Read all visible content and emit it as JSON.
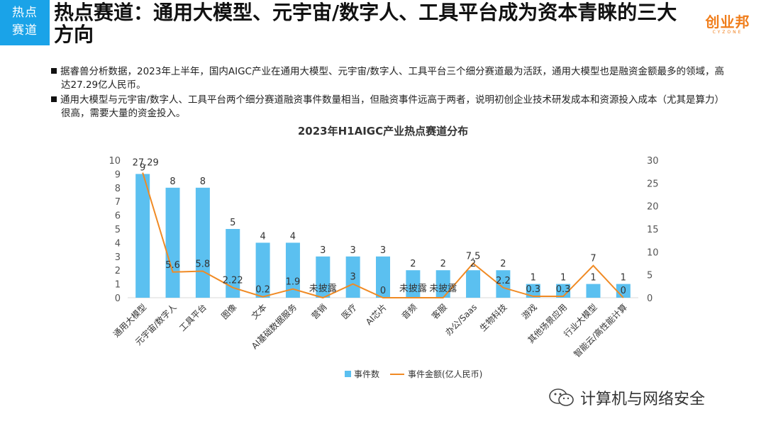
{
  "tag": {
    "line1": "热点",
    "line2": "赛道"
  },
  "title": "热点赛道：通用大模型、元宇宙/数字人、工具平台成为资本青睐的三大方向",
  "logo": {
    "main": "创业邦",
    "sub": "CYZONE"
  },
  "bullets": [
    "据睿兽分析数据，2023年上半年，国内AIGC产业在通用大模型、元宇宙/数字人、工具平台三个细分赛道最为活跃，通用大模型也是融资金额最多的领域，高达27.29亿人民币。",
    "通用大模型与元宇宙/数字人、工具平台两个细分赛道融资事件数量相当，但融资事件远高于两者，说明初创企业技术研发成本和资源投入成本（尤其是算力）很高，需要大量的资金投入。"
  ],
  "watermark": "计算机与网络安全",
  "colors": {
    "bar": "#5bc0f0",
    "line": "#f08a24",
    "tag": "#1aa3e8",
    "logo": "#f07d1a"
  },
  "chart_data": {
    "type": "bar",
    "title": "2023年H1AIGC产业热点赛道分布",
    "categories": [
      "通用大模型",
      "元宇宙/数字人",
      "工具平台",
      "图像",
      "文本",
      "AI基础数据服务",
      "营销",
      "医疗",
      "AI芯片",
      "音频",
      "客服",
      "办公/Saas",
      "生物科技",
      "游戏",
      "其他场景应用",
      "行业大模型",
      "智能云/高性能计算"
    ],
    "series": [
      {
        "name": "事件数",
        "type": "bar",
        "axis": "left",
        "values": [
          9,
          8,
          8,
          5,
          4,
          4,
          3,
          3,
          3,
          2,
          2,
          2,
          2,
          1,
          1,
          1,
          1
        ]
      },
      {
        "name": "事件金额(亿人民币)",
        "type": "line",
        "axis": "right",
        "values": [
          27.29,
          5.6,
          5.8,
          2.22,
          0.2,
          1.9,
          0,
          3,
          0,
          0,
          0,
          7.5,
          2.2,
          0.3,
          0.3,
          7,
          0
        ],
        "labels": [
          "27.29",
          "5.6",
          "5.8",
          "2.22",
          "0.2",
          "1.9",
          "未披露",
          "3",
          "0",
          "未披露",
          "未披露",
          "7.5",
          "2.2",
          "0.3",
          "0.3",
          "7",
          "0"
        ]
      }
    ],
    "y_left": {
      "min": 0,
      "max": 10,
      "ticks": [
        "0",
        "1",
        "2",
        "3",
        "4",
        "5",
        "6",
        "7",
        "8",
        "9",
        "10"
      ]
    },
    "y_right": {
      "min": 0,
      "max": 30,
      "ticks": [
        "0",
        "5",
        "10",
        "15",
        "20",
        "25",
        "30"
      ]
    },
    "grid": false,
    "legend_position": "bottom"
  }
}
